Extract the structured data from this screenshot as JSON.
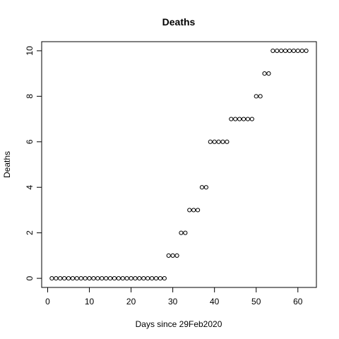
{
  "chart_data": {
    "type": "scatter",
    "title": "Deaths",
    "xlabel": "Days since 29Feb2020",
    "ylabel": "Deaths",
    "xlim": [
      -1.44,
      64.44
    ],
    "ylim": [
      -0.4,
      10.4
    ],
    "x_ticks": [
      0,
      10,
      20,
      30,
      40,
      50,
      60
    ],
    "y_ticks": [
      0,
      2,
      4,
      6,
      8,
      10
    ],
    "grid": false,
    "legend": "none",
    "series": [
      {
        "x": [
          1,
          2,
          3,
          4,
          5,
          6,
          7,
          8,
          9,
          10,
          11,
          12,
          13,
          14,
          15,
          16,
          17,
          18,
          19,
          20,
          21,
          22,
          23,
          24,
          25,
          26,
          27,
          28,
          29,
          30,
          31,
          32,
          33,
          34,
          35,
          36,
          37,
          38,
          39,
          40,
          41,
          42,
          43,
          44,
          45,
          46,
          47,
          48,
          49,
          50,
          51,
          52,
          53,
          54,
          55,
          56,
          57,
          58,
          59,
          60,
          61,
          62
        ],
        "y": [
          0,
          0,
          0,
          0,
          0,
          0,
          0,
          0,
          0,
          0,
          0,
          0,
          0,
          0,
          0,
          0,
          0,
          0,
          0,
          0,
          0,
          0,
          0,
          0,
          0,
          0,
          0,
          0,
          1,
          1,
          1,
          2,
          2,
          3,
          3,
          3,
          4,
          4,
          6,
          6,
          6,
          6,
          6,
          7,
          7,
          7,
          7,
          7,
          7,
          8,
          8,
          9,
          9,
          10,
          10,
          10,
          10,
          10,
          10,
          10,
          10,
          10
        ]
      }
    ]
  }
}
